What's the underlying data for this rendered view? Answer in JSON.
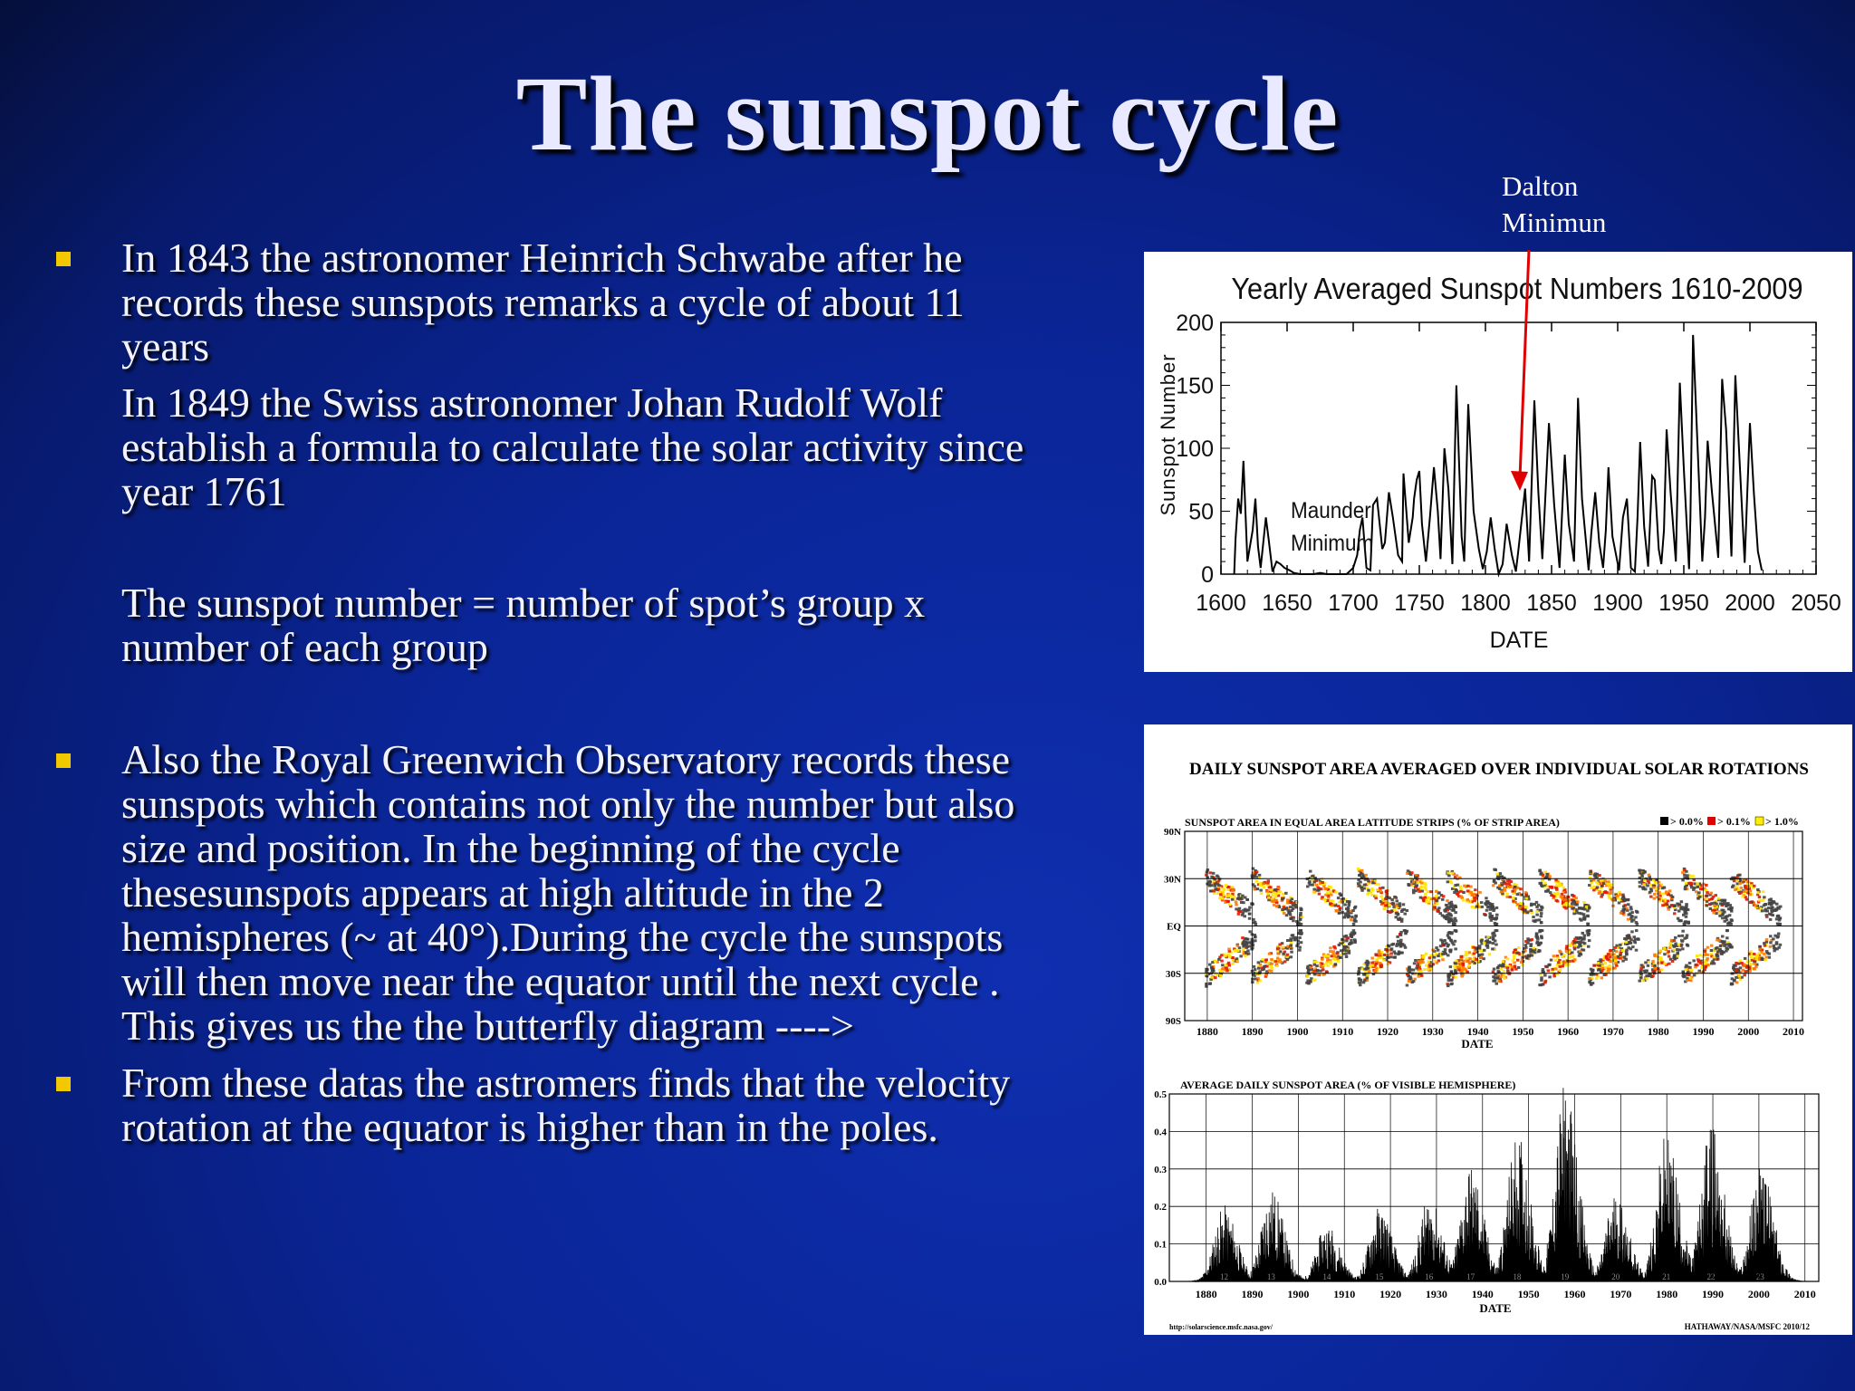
{
  "slide": {
    "title": "The sunspot cycle",
    "paragraphs": [
      "In 1843 the astronomer Heinrich Schwabe after he\nrecords these sunspots remarks a cycle of about  11\nyears",
      "In 1849 the Swiss astronomer Johan Rudolf Wolf\nestablish a formula to calculate the solar activity since\nyear 1761",
      "The sunspot number  =  number of spot’s group x\nnumber of each group",
      "Also the Royal Greenwich Observatory records these\nsunspots which contains not only the number but also\nsize and position. In the beginning of the cycle\nthesesunspots appears at high altitude in the 2\nhemispheres (~ at 40°).During the cycle the sunspots\nwill then move near the equator until the next cycle .\nThis gives us the the butterfly diagram ---->",
      "From these datas the astromers finds that the velocity\nrotation at the equator is higher than in the poles."
    ],
    "callout": "Dalton\nMinimun",
    "colors": {
      "bullet": "#f2c900",
      "background": "#0a2597",
      "arrow": "#e00000"
    }
  },
  "chart_data": [
    {
      "type": "line",
      "title": "Yearly Averaged Sunspot Numbers 1610-2009",
      "xlabel": "DATE",
      "ylabel": "Sunspot Number",
      "xlim": [
        1600,
        2050
      ],
      "ylim": [
        0,
        200
      ],
      "xticks": [
        "1600",
        "1650",
        "1700",
        "1750",
        "1800",
        "1850",
        "1900",
        "1950",
        "2000",
        "2050"
      ],
      "yticks": [
        "0",
        "50",
        "100",
        "150",
        "200"
      ],
      "annotations": [
        "Maunder\nMinimum"
      ],
      "series": [
        {
          "x": [
            1610,
            1611,
            1613,
            1615,
            1617,
            1620,
            1624,
            1626,
            1628,
            1630,
            1632,
            1634,
            1636,
            1639,
            1642,
            1645,
            1648,
            1652,
            1655,
            1660,
            1665,
            1670,
            1675,
            1680,
            1685,
            1690,
            1695,
            1700,
            1703,
            1705,
            1707,
            1710,
            1713,
            1715,
            1718,
            1722,
            1724,
            1727,
            1730,
            1734,
            1737,
            1738,
            1742,
            1745,
            1746,
            1748,
            1750,
            1752,
            1755,
            1758,
            1761,
            1764,
            1766,
            1769,
            1772,
            1775,
            1778,
            1782,
            1784,
            1787,
            1791,
            1795,
            1798,
            1801,
            1804,
            1807,
            1810,
            1813,
            1816,
            1820,
            1823,
            1825,
            1830,
            1833,
            1837,
            1840,
            1843,
            1848,
            1852,
            1856,
            1860,
            1863,
            1867,
            1870,
            1873,
            1878,
            1880,
            1883,
            1886,
            1889,
            1891,
            1893,
            1896,
            1901,
            1904,
            1907,
            1910,
            1913,
            1915,
            1917,
            1920,
            1923,
            1926,
            1928,
            1931,
            1933,
            1935,
            1937,
            1940,
            1944,
            1947,
            1950,
            1954,
            1955,
            1957,
            1960,
            1964,
            1966,
            1968,
            1971,
            1976,
            1979,
            1982,
            1986,
            1989,
            1992,
            1996,
            1998,
            2000,
            2003,
            2006,
            2009
          ],
          "y": [
            0,
            28,
            60,
            48,
            90,
            10,
            35,
            60,
            22,
            5,
            25,
            45,
            28,
            2,
            10,
            8,
            5,
            3,
            1,
            0,
            0,
            0,
            1,
            0,
            0,
            0,
            0,
            5,
            15,
            35,
            45,
            5,
            3,
            55,
            60,
            20,
            25,
            65,
            45,
            15,
            10,
            80,
            25,
            45,
            60,
            75,
            82,
            40,
            10,
            45,
            85,
            50,
            12,
            100,
            68,
            8,
            150,
            30,
            10,
            135,
            50,
            20,
            4,
            18,
            45,
            20,
            0,
            8,
            40,
            15,
            2,
            20,
            68,
            10,
            138,
            65,
            12,
            120,
            55,
            5,
            95,
            40,
            10,
            140,
            60,
            3,
            32,
            65,
            25,
            5,
            35,
            85,
            30,
            3,
            45,
            60,
            5,
            2,
            45,
            105,
            38,
            6,
            78,
            75,
            20,
            8,
            35,
            115,
            65,
            10,
            152,
            84,
            4,
            45,
            190,
            112,
            10,
            45,
            106,
            68,
            13,
            155,
            115,
            14,
            158,
            94,
            9,
            65,
            120,
            64,
            18,
            3
          ]
        }
      ]
    },
    {
      "type": "heatmap",
      "title": "DAILY SUNSPOT AREA AVERAGED OVER INDIVIDUAL SOLAR ROTATIONS",
      "subtitle": "SUNSPOT AREA IN EQUAL AREA LATITUDE STRIPS (% OF STRIP AREA)",
      "legend": [
        "> 0.0%",
        "> 0.1%",
        "> 1.0%"
      ],
      "legend_colors": [
        "#000000",
        "#e00000",
        "#ffee00"
      ],
      "xlabel": "DATE",
      "xticks": [
        "1880",
        "1890",
        "1900",
        "1910",
        "1920",
        "1930",
        "1940",
        "1950",
        "1960",
        "1970",
        "1980",
        "1990",
        "2000",
        "2010"
      ],
      "yticks": [
        "90N",
        "30N",
        "EQ",
        "30S",
        "90S"
      ],
      "cycle_peaks": [
        1883.9,
        1894.1,
        1906.2,
        1917.6,
        1928.4,
        1937.4,
        1947.5,
        1957.9,
        1968.9,
        1979.9,
        1989.6,
        2000.3
      ]
    },
    {
      "type": "area",
      "title": "AVERAGE DAILY SUNSPOT AREA (% OF VISIBLE HEMISPHERE)",
      "xlabel": "DATE",
      "xticks": [
        "1880",
        "1890",
        "1900",
        "1910",
        "1920",
        "1930",
        "1940",
        "1950",
        "1960",
        "1970",
        "1980",
        "1990",
        "2000",
        "2010"
      ],
      "yticks": [
        "0.0",
        "0.1",
        "0.2",
        "0.3",
        "0.4",
        "0.5"
      ],
      "ylim": [
        0,
        0.5
      ],
      "cycle_numbers": [
        "12",
        "13",
        "14",
        "15",
        "16",
        "17",
        "18",
        "19",
        "20",
        "21",
        "22",
        "23"
      ],
      "cycle_peaks": [
        1883.9,
        1894.1,
        1906.2,
        1917.6,
        1928.4,
        1937.4,
        1947.5,
        1957.9,
        1968.9,
        1979.9,
        1989.6,
        2000.3
      ],
      "peak_values": [
        0.17,
        0.21,
        0.13,
        0.17,
        0.19,
        0.26,
        0.33,
        0.44,
        0.2,
        0.33,
        0.35,
        0.26
      ],
      "footer_left": "http://solarscience.msfc.nasa.gov/",
      "footer_right": "HATHAWAY/NASA/MSFC 2010/12"
    }
  ]
}
